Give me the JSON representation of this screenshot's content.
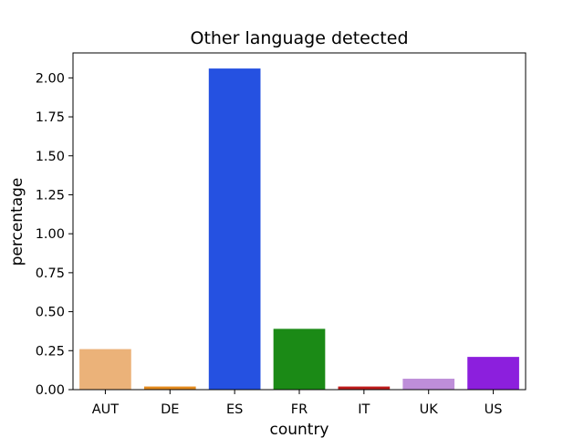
{
  "chart_data": {
    "type": "bar",
    "title": "Other language detected",
    "xlabel": "country",
    "ylabel": "percentage",
    "categories": [
      "AUT",
      "DE",
      "ES",
      "FR",
      "IT",
      "UK",
      "US"
    ],
    "values": [
      0.26,
      0.02,
      2.06,
      0.39,
      0.02,
      0.07,
      0.21
    ],
    "colors": [
      "#EBB279",
      "#E38A1F",
      "#2551E1",
      "#1B8A16",
      "#BE1C1C",
      "#BE8ED9",
      "#8C1FDD"
    ],
    "ylim": [
      0,
      2.16
    ],
    "yticks": [
      0,
      0.25,
      0.5,
      0.75,
      1.0,
      1.25,
      1.5,
      1.75,
      2.0
    ],
    "ytick_labels": [
      "0.00",
      "0.25",
      "0.50",
      "0.75",
      "1.00",
      "1.25",
      "1.50",
      "1.75",
      "2.00"
    ],
    "grid": false,
    "legend": "none"
  }
}
